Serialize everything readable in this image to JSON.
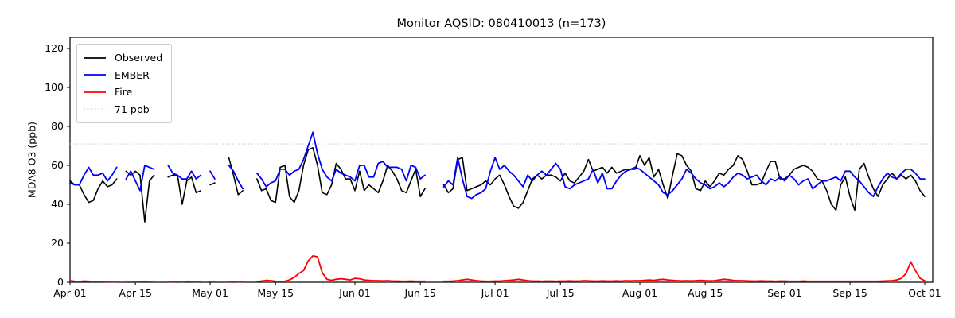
{
  "title": "Monitor AQSID: 080410013 (n=173)",
  "ylabel": "MDA8 O3 (ppb)",
  "legend": {
    "items": [
      {
        "label": "Observed",
        "color": "#000000",
        "style": "solid"
      },
      {
        "label": "EMBER",
        "color": "#0000ff",
        "style": "solid"
      },
      {
        "label": "Fire",
        "color": "#ff0000",
        "style": "solid"
      },
      {
        "label": "71 ppb",
        "color": "#d3d3d3",
        "style": "dotted"
      }
    ]
  },
  "chart_data": {
    "type": "line",
    "title": "Monitor AQSID: 080410013 (n=173)",
    "xlabel": "",
    "ylabel": "MDA8 O3 (ppb)",
    "x_unit": "days from Apr 01",
    "n_days": 184,
    "x_tick_labels": [
      "Apr 01",
      "Apr 15",
      "May 01",
      "May 15",
      "Jun 01",
      "Jun 15",
      "Jul 01",
      "Jul 15",
      "Aug 01",
      "Aug 15",
      "Sep 01",
      "Sep 15",
      "Oct 01"
    ],
    "x_tick_days": [
      0,
      14,
      30,
      44,
      61,
      75,
      91,
      105,
      122,
      136,
      153,
      167,
      183
    ],
    "y_ticks": [
      0,
      20,
      40,
      60,
      80,
      100,
      120
    ],
    "ylim": [
      0,
      125.7
    ],
    "xlim_days": [
      0,
      184.7
    ],
    "grid": false,
    "legend_position": "upper left",
    "reference_line": {
      "value": 71,
      "label": "71 ppb",
      "color": "#d3d3d3",
      "style": "dotted"
    },
    "series": [
      {
        "name": "Observed",
        "color": "#000000",
        "values": [
          52,
          50,
          50,
          45,
          41,
          42,
          48,
          52,
          49,
          50,
          53,
          null,
          57,
          55,
          57,
          55,
          31,
          52,
          55,
          null,
          null,
          54,
          55,
          55,
          40,
          52,
          54,
          46,
          47,
          null,
          50,
          51,
          null,
          null,
          64,
          55,
          45,
          47,
          null,
          null,
          53,
          47,
          48,
          42,
          41,
          59,
          60,
          44,
          41,
          47,
          60,
          68,
          69,
          60,
          46,
          45,
          50,
          61,
          58,
          53,
          53,
          47,
          57,
          47,
          50,
          48,
          46,
          52,
          60,
          57,
          53,
          47,
          46,
          52,
          58,
          44,
          48,
          null,
          null,
          null,
          50,
          46,
          48,
          63,
          64,
          47,
          48,
          49,
          50,
          52,
          50,
          53,
          55,
          50,
          44,
          39,
          38,
          41,
          47,
          53,
          55,
          53,
          55,
          55,
          54,
          52,
          56,
          52,
          51,
          54,
          57,
          63,
          57,
          58,
          59,
          56,
          59,
          56,
          57,
          58,
          58,
          58,
          65,
          60,
          64,
          54,
          58,
          50,
          43,
          55,
          66,
          65,
          60,
          57,
          48,
          47,
          52,
          49,
          52,
          56,
          55,
          58,
          60,
          65,
          63,
          57,
          50,
          50,
          51,
          57,
          62,
          62,
          53,
          53,
          55,
          58,
          59,
          60,
          59,
          57,
          53,
          52,
          47,
          40,
          37,
          50,
          54,
          44,
          37,
          58,
          61,
          54,
          48,
          44,
          50,
          53,
          56,
          53,
          55,
          53,
          55,
          52,
          47,
          44
        ]
      },
      {
        "name": "EMBER",
        "color": "#0000ff",
        "values": [
          51,
          50,
          50,
          55,
          59,
          55,
          55,
          56,
          52,
          55,
          59,
          null,
          53,
          57,
          52,
          47,
          60,
          59,
          58,
          null,
          null,
          60,
          56,
          55,
          53,
          53,
          57,
          53,
          55,
          null,
          57,
          53,
          null,
          null,
          60,
          57,
          52,
          48,
          null,
          null,
          56,
          53,
          49,
          51,
          52,
          58,
          58,
          55,
          57,
          58,
          63,
          70,
          77,
          66,
          58,
          54,
          52,
          58,
          56,
          55,
          54,
          52,
          60,
          60,
          54,
          54,
          61,
          62,
          59,
          59,
          59,
          58,
          52,
          60,
          59,
          53,
          55,
          null,
          null,
          null,
          49,
          52,
          50,
          64,
          53,
          44,
          43,
          45,
          46,
          48,
          57,
          64,
          58,
          60,
          57,
          55,
          52,
          49,
          55,
          52,
          55,
          57,
          55,
          58,
          61,
          58,
          49,
          48,
          50,
          51,
          52,
          53,
          58,
          51,
          56,
          48,
          48,
          52,
          55,
          57,
          58,
          59,
          58,
          56,
          54,
          52,
          50,
          46,
          45,
          47,
          50,
          53,
          58,
          56,
          53,
          51,
          50,
          48,
          49,
          51,
          49,
          51,
          54,
          56,
          55,
          53,
          54,
          55,
          52,
          50,
          53,
          52,
          54,
          52,
          55,
          53,
          50,
          52,
          53,
          48,
          50,
          52,
          52,
          53,
          54,
          52,
          57,
          57,
          54,
          52,
          49,
          46,
          44,
          49,
          53,
          56,
          54,
          53,
          56,
          58,
          58,
          56,
          53,
          53
        ]
      },
      {
        "name": "Fire",
        "color": "#ff0000",
        "values": [
          0.8,
          0.5,
          0.4,
          0.6,
          0.5,
          0.4,
          0.4,
          0.4,
          0.3,
          0.3,
          0.3,
          null,
          0.3,
          0.4,
          0.3,
          0.4,
          0.5,
          0.4,
          0.3,
          null,
          null,
          0.3,
          0.3,
          0.4,
          0.3,
          0.5,
          0.4,
          0.3,
          0.4,
          null,
          0.4,
          0.3,
          null,
          null,
          0.3,
          0.4,
          0.3,
          0.3,
          null,
          null,
          0.4,
          0.6,
          1.0,
          0.8,
          0.5,
          0.4,
          0.5,
          1.2,
          2.5,
          4.5,
          6.0,
          11.0,
          13.5,
          13.0,
          5.0,
          1.5,
          1.0,
          1.5,
          1.8,
          1.5,
          1.2,
          2.0,
          1.8,
          1.2,
          1.0,
          0.8,
          0.8,
          0.7,
          0.8,
          0.6,
          0.6,
          0.5,
          0.5,
          0.6,
          0.5,
          0.5,
          0.5,
          null,
          null,
          null,
          0.5,
          0.5,
          0.6,
          0.8,
          1.2,
          1.5,
          1.2,
          0.8,
          0.6,
          0.5,
          0.5,
          0.6,
          0.6,
          0.8,
          1.0,
          1.2,
          1.5,
          1.2,
          0.8,
          0.6,
          0.6,
          0.5,
          0.6,
          0.6,
          0.5,
          0.6,
          0.6,
          0.7,
          0.6,
          0.6,
          0.8,
          0.7,
          0.6,
          0.6,
          0.7,
          0.6,
          0.6,
          0.7,
          0.6,
          0.8,
          0.7,
          0.8,
          0.8,
          1.0,
          1.2,
          1.0,
          1.3,
          1.5,
          1.2,
          1.0,
          0.8,
          0.7,
          0.8,
          0.7,
          0.8,
          1.0,
          0.8,
          0.7,
          0.8,
          1.2,
          1.5,
          1.3,
          1.0,
          0.8,
          0.8,
          0.7,
          0.6,
          0.6,
          0.7,
          0.6,
          0.6,
          0.5,
          0.6,
          0.6,
          0.5,
          0.5,
          0.5,
          0.6,
          0.5,
          0.5,
          0.5,
          0.5,
          0.5,
          0.5,
          0.5,
          0.5,
          0.5,
          0.5,
          0.5,
          0.5,
          0.5,
          0.5,
          0.5,
          0.5,
          0.6,
          0.7,
          0.8,
          1.2,
          2.0,
          4.5,
          10.5,
          6.0,
          2.0,
          0.8
        ]
      }
    ]
  }
}
